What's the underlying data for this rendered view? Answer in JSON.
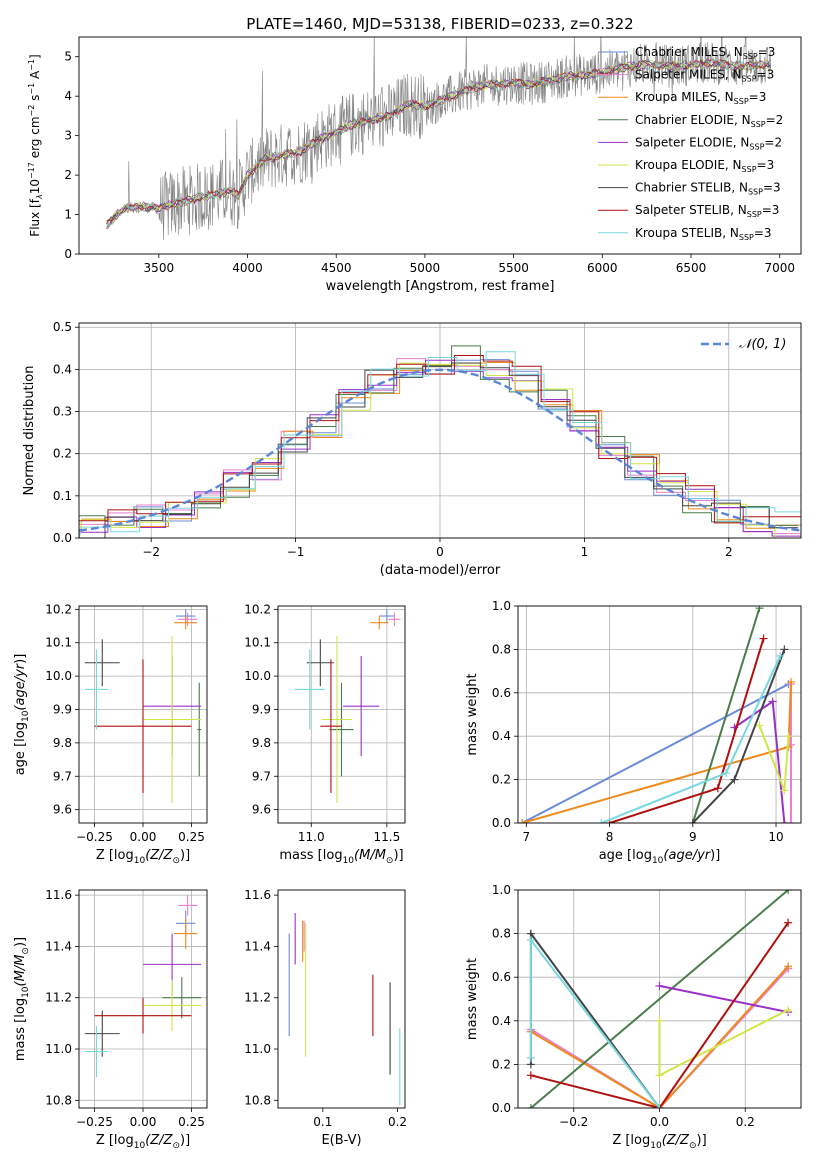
{
  "figure": {
    "title": "PLATE=1460, MJD=53138, FIBERID=0233, z=0.322"
  },
  "colors": {
    "chabrier_miles": "#6a8cd8",
    "salpeter_miles": "#e87fd0",
    "kroupa_miles": "#f08a1a",
    "chabrier_elodie": "#4a7d4a",
    "salpeter_elodie": "#9b30c8",
    "kroupa_elodie": "#d2e64a",
    "chabrier_stelib": "#444444",
    "salpeter_stelib": "#b01010",
    "kroupa_stelib": "#78d8e0",
    "data_spectrum": "#808080",
    "normal_curve": "#5b86d6",
    "grid": "#b0b0b0"
  },
  "chart_data": [
    {
      "id": "spectrum",
      "type": "line",
      "xlabel": "wavelength [Angstrom, rest frame]",
      "ylabel": "Flux [f_λ 10^-17 erg cm^-2 s^-1 A^-1]",
      "xlim": [
        3050,
        7120
      ],
      "ylim": [
        0,
        5.5
      ],
      "xticks": [
        3500,
        4000,
        4500,
        5000,
        5500,
        6000,
        6500,
        7000
      ],
      "yticks": [
        0,
        1,
        2,
        3,
        4,
        5
      ],
      "grid": false,
      "legend_position": "upper right",
      "continuum_x": [
        3200,
        3300,
        3400,
        3500,
        3600,
        3700,
        3800,
        3900,
        3950,
        4000,
        4100,
        4200,
        4300,
        4400,
        4500,
        4600,
        4700,
        4800,
        4900,
        5000,
        5100,
        5200,
        5300,
        5400,
        5500,
        5600,
        5700,
        5800,
        5900,
        6000,
        6100,
        6200,
        6300,
        6400,
        6500,
        6600,
        6700,
        6800,
        6900
      ],
      "continuum_y": [
        0.7,
        1.15,
        1.2,
        1.15,
        1.3,
        1.4,
        1.5,
        1.6,
        1.5,
        2.0,
        2.4,
        2.5,
        2.6,
        2.9,
        3.1,
        3.3,
        3.4,
        3.5,
        3.8,
        3.75,
        3.9,
        4.1,
        4.25,
        4.3,
        4.35,
        4.3,
        4.4,
        4.5,
        4.55,
        4.6,
        4.7,
        4.8,
        4.8,
        4.75,
        4.8,
        4.85,
        4.8,
        4.75,
        4.8
      ],
      "series": [
        {
          "name": "Chabrier MILES, N_SSP=3",
          "label_main": "Chabrier MILES, N",
          "label_sub": "SSP",
          "label_tail": "=3",
          "color_key": "chabrier_miles"
        },
        {
          "name": "Salpeter MILES, N_SSP=3",
          "label_main": "Salpeter MILES, N",
          "label_sub": "SSP",
          "label_tail": "=3",
          "color_key": "salpeter_miles"
        },
        {
          "name": "Kroupa MILES, N_SSP=3",
          "label_main": "Kroupa MILES, N",
          "label_sub": "SSP",
          "label_tail": "=3",
          "color_key": "kroupa_miles"
        },
        {
          "name": "Chabrier ELODIE, N_SSP=2",
          "label_main": "Chabrier ELODIE, N",
          "label_sub": "SSP",
          "label_tail": "=2",
          "color_key": "chabrier_elodie"
        },
        {
          "name": "Salpeter ELODIE, N_SSP=2",
          "label_main": "Salpeter ELODIE, N",
          "label_sub": "SSP",
          "label_tail": "=2",
          "color_key": "salpeter_elodie"
        },
        {
          "name": "Kroupa ELODIE, N_SSP=3",
          "label_main": "Kroupa ELODIE, N",
          "label_sub": "SSP",
          "label_tail": "=3",
          "color_key": "kroupa_elodie"
        },
        {
          "name": "Chabrier STELIB, N_SSP=3",
          "label_main": "Chabrier STELIB, N",
          "label_sub": "SSP",
          "label_tail": "=3",
          "color_key": "chabrier_stelib"
        },
        {
          "name": "Salpeter STELIB, N_SSP=3",
          "label_main": "Salpeter STELIB, N",
          "label_sub": "SSP",
          "label_tail": "=3",
          "color_key": "salpeter_stelib"
        },
        {
          "name": "Kroupa STELIB, N_SSP=3",
          "label_main": "Kroupa STELIB, N",
          "label_sub": "SSP",
          "label_tail": "=3",
          "color_key": "kroupa_stelib"
        }
      ]
    },
    {
      "id": "residuals",
      "type": "histogram",
      "xlabel": "(data-model)/error",
      "ylabel": "Normed distribution",
      "xlim": [
        -2.5,
        2.5
      ],
      "ylim": [
        0,
        0.51
      ],
      "xticks": [
        -2,
        -1,
        0,
        1,
        2
      ],
      "yticks": [
        0.0,
        0.1,
        0.2,
        0.3,
        0.4,
        0.5
      ],
      "grid": true,
      "legend_position": "upper right",
      "legend_label": "𝒩(0, 1)",
      "bin_edges": [
        -2.5,
        -2.3,
        -2.1,
        -1.9,
        -1.7,
        -1.5,
        -1.3,
        -1.1,
        -0.9,
        -0.7,
        -0.5,
        -0.3,
        -0.1,
        0.1,
        0.3,
        0.5,
        0.7,
        0.9,
        1.1,
        1.3,
        1.5,
        1.7,
        1.9,
        2.1,
        2.3,
        2.5
      ],
      "base_density": [
        0.03,
        0.04,
        0.05,
        0.07,
        0.1,
        0.13,
        0.17,
        0.22,
        0.27,
        0.32,
        0.37,
        0.41,
        0.42,
        0.43,
        0.41,
        0.38,
        0.33,
        0.28,
        0.22,
        0.17,
        0.12,
        0.09,
        0.06,
        0.04,
        0.03
      ],
      "normal_curve": {
        "mean": 0,
        "sigma": 1
      }
    },
    {
      "id": "age_vs_Z",
      "type": "errorbar",
      "xlabel": "Z [log10(Z/Z☉)]",
      "ylabel": "age [log10(age/yr)]",
      "xlim": [
        -0.33,
        0.33
      ],
      "ylim": [
        9.56,
        10.21
      ],
      "xticks": [
        -0.25,
        0.0,
        0.25
      ],
      "yticks": [
        9.6,
        9.7,
        9.8,
        9.9,
        10.0,
        10.1,
        10.2
      ],
      "grid": true,
      "points": [
        {
          "color_key": "chabrier_miles",
          "x": 0.22,
          "xerr": 0.05,
          "y": 10.18,
          "yerr": 0.02
        },
        {
          "color_key": "salpeter_miles",
          "x": 0.23,
          "xerr": 0.05,
          "y": 10.17,
          "yerr": 0.02
        },
        {
          "color_key": "kroupa_miles",
          "x": 0.22,
          "xerr": 0.06,
          "y": 10.16,
          "yerr": 0.02
        },
        {
          "color_key": "chabrier_elodie",
          "x": 0.29,
          "xerr": 0.01,
          "y": 9.84,
          "yerr": 0.14
        },
        {
          "color_key": "salpeter_elodie",
          "x": 0.15,
          "xerr": 0.15,
          "y": 9.91,
          "yerr": 0.15
        },
        {
          "color_key": "kroupa_elodie",
          "x": 0.15,
          "xerr": 0.15,
          "y": 9.87,
          "yerr": 0.25
        },
        {
          "color_key": "chabrier_stelib",
          "x": -0.21,
          "xerr": 0.09,
          "y": 10.04,
          "yerr": 0.07
        },
        {
          "color_key": "salpeter_stelib",
          "x": 0.0,
          "xerr": 0.25,
          "y": 9.85,
          "yerr": 0.2
        },
        {
          "color_key": "kroupa_stelib",
          "x": -0.24,
          "xerr": 0.06,
          "y": 9.96,
          "yerr": 0.12
        }
      ]
    },
    {
      "id": "age_vs_mass",
      "type": "errorbar",
      "xlabel": "mass [log10(M/M☉)]",
      "ylabel": "",
      "xlim": [
        10.78,
        11.62
      ],
      "ylim": [
        9.56,
        10.21
      ],
      "xticks": [
        11.0,
        11.5
      ],
      "yticks": [
        9.6,
        9.7,
        9.8,
        9.9,
        10.0,
        10.1,
        10.2
      ],
      "grid": true,
      "points": [
        {
          "color_key": "chabrier_miles",
          "x": 11.5,
          "xerr": 0.05,
          "y": 10.18,
          "yerr": 0.02
        },
        {
          "color_key": "salpeter_miles",
          "x": 11.55,
          "xerr": 0.04,
          "y": 10.17,
          "yerr": 0.02
        },
        {
          "color_key": "kroupa_miles",
          "x": 11.45,
          "xerr": 0.06,
          "y": 10.16,
          "yerr": 0.02
        },
        {
          "color_key": "chabrier_elodie",
          "x": 11.2,
          "xerr": 0.08,
          "y": 9.84,
          "yerr": 0.14
        },
        {
          "color_key": "salpeter_elodie",
          "x": 11.33,
          "xerr": 0.12,
          "y": 9.91,
          "yerr": 0.15
        },
        {
          "color_key": "kroupa_elodie",
          "x": 11.17,
          "xerr": 0.1,
          "y": 9.87,
          "yerr": 0.25
        },
        {
          "color_key": "chabrier_stelib",
          "x": 11.06,
          "xerr": 0.09,
          "y": 10.04,
          "yerr": 0.07
        },
        {
          "color_key": "salpeter_stelib",
          "x": 11.13,
          "xerr": 0.07,
          "y": 9.85,
          "yerr": 0.2
        },
        {
          "color_key": "kroupa_stelib",
          "x": 10.99,
          "xerr": 0.1,
          "y": 9.96,
          "yerr": 0.12
        }
      ]
    },
    {
      "id": "weight_vs_age",
      "type": "line",
      "xlabel": "age [log10(age/yr)]",
      "ylabel": "mass weight",
      "xlim": [
        6.9,
        10.3
      ],
      "ylim": [
        0,
        1.0
      ],
      "xticks": [
        7,
        8,
        9,
        10
      ],
      "yticks": [
        0.0,
        0.2,
        0.4,
        0.6,
        0.8,
        1.0
      ],
      "grid": true,
      "series": [
        {
          "color_key": "chabrier_miles",
          "x": [
            6.95,
            10.15
          ],
          "y": [
            0.0,
            0.64
          ]
        },
        {
          "color_key": "salpeter_miles",
          "x": [
            10.18,
            10.18,
            10.18
          ],
          "y": [
            0.36,
            0.64,
            0.0
          ]
        },
        {
          "color_key": "kroupa_miles",
          "x": [
            6.95,
            10.15,
            10.18
          ],
          "y": [
            0.0,
            0.35,
            0.65
          ]
        },
        {
          "color_key": "chabrier_elodie",
          "x": [
            9.0,
            9.8
          ],
          "y": [
            0.0,
            0.99
          ]
        },
        {
          "color_key": "salpeter_elodie",
          "x": [
            9.5,
            9.96,
            10.1
          ],
          "y": [
            0.44,
            0.56,
            0.0
          ]
        },
        {
          "color_key": "kroupa_elodie",
          "x": [
            9.8,
            10.1,
            10.15
          ],
          "y": [
            0.45,
            0.15,
            0.4
          ]
        },
        {
          "color_key": "chabrier_stelib",
          "x": [
            9.0,
            9.5,
            10.1
          ],
          "y": [
            0.0,
            0.2,
            0.8
          ]
        },
        {
          "color_key": "salpeter_stelib",
          "x": [
            8.0,
            9.3,
            9.85
          ],
          "y": [
            0.0,
            0.16,
            0.85
          ]
        },
        {
          "color_key": "kroupa_stelib",
          "x": [
            7.9,
            9.4,
            10.05
          ],
          "y": [
            0.0,
            0.23,
            0.77
          ]
        }
      ]
    },
    {
      "id": "mass_vs_Z",
      "type": "errorbar",
      "xlabel": "Z [log10(Z/Z☉)]",
      "ylabel": "mass [log10(M/M☉)]",
      "xlim": [
        -0.33,
        0.33
      ],
      "ylim": [
        10.77,
        11.62
      ],
      "xticks": [
        -0.25,
        0.0,
        0.25
      ],
      "yticks": [
        10.8,
        11.0,
        11.2,
        11.4,
        11.6
      ],
      "grid": true,
      "points": [
        {
          "color_key": "chabrier_miles",
          "x": 0.22,
          "xerr": 0.05,
          "y": 11.49,
          "yerr": 0.05
        },
        {
          "color_key": "salpeter_miles",
          "x": 0.23,
          "xerr": 0.05,
          "y": 11.56,
          "yerr": 0.04
        },
        {
          "color_key": "kroupa_miles",
          "x": 0.22,
          "xerr": 0.06,
          "y": 11.45,
          "yerr": 0.06
        },
        {
          "color_key": "chabrier_elodie",
          "x": 0.2,
          "xerr": 0.1,
          "y": 11.2,
          "yerr": 0.08
        },
        {
          "color_key": "salpeter_elodie",
          "x": 0.15,
          "xerr": 0.15,
          "y": 11.33,
          "yerr": 0.12
        },
        {
          "color_key": "kroupa_elodie",
          "x": 0.15,
          "xerr": 0.15,
          "y": 11.17,
          "yerr": 0.1
        },
        {
          "color_key": "chabrier_stelib",
          "x": -0.21,
          "xerr": 0.09,
          "y": 11.06,
          "yerr": 0.09
        },
        {
          "color_key": "salpeter_stelib",
          "x": 0.0,
          "xerr": 0.25,
          "y": 11.13,
          "yerr": 0.07
        },
        {
          "color_key": "kroupa_stelib",
          "x": -0.24,
          "xerr": 0.06,
          "y": 10.99,
          "yerr": 0.1
        }
      ]
    },
    {
      "id": "mass_vs_ebv",
      "type": "errorbar",
      "xlabel": "E(B-V)",
      "ylabel": "",
      "xlim": [
        0.04,
        0.21
      ],
      "ylim": [
        10.77,
        11.62
      ],
      "xticks": [
        0.1,
        0.2
      ],
      "yticks": [
        10.8,
        11.0,
        11.2,
        11.4,
        11.6
      ],
      "grid": false,
      "points": [
        {
          "color_key": "chabrier_miles",
          "x": 0.055,
          "xerr": 0.0,
          "y": 11.25,
          "yerr": 0.2
        },
        {
          "color_key": "salpeter_miles",
          "x": 0.075,
          "xerr": 0.0,
          "y": 11.44,
          "yerr": 0.06
        },
        {
          "color_key": "kroupa_miles",
          "x": 0.073,
          "xerr": 0.0,
          "y": 11.42,
          "yerr": 0.08
        },
        {
          "color_key": "salpeter_elodie",
          "x": 0.063,
          "xerr": 0.0,
          "y": 11.43,
          "yerr": 0.1
        },
        {
          "color_key": "kroupa_elodie",
          "x": 0.077,
          "xerr": 0.0,
          "y": 11.23,
          "yerr": 0.26
        },
        {
          "color_key": "chabrier_stelib",
          "x": 0.19,
          "xerr": 0.0,
          "y": 11.08,
          "yerr": 0.18
        },
        {
          "color_key": "salpeter_stelib",
          "x": 0.167,
          "xerr": 0.0,
          "y": 11.17,
          "yerr": 0.12
        },
        {
          "color_key": "kroupa_stelib",
          "x": 0.203,
          "xerr": 0.0,
          "y": 10.93,
          "yerr": 0.15
        }
      ]
    },
    {
      "id": "weight_vs_Z",
      "type": "line",
      "xlabel": "Z [log10(Z/Z☉)]",
      "ylabel": "mass weight",
      "xlim": [
        -0.33,
        0.33
      ],
      "ylim": [
        0,
        1.0
      ],
      "xticks": [
        -0.2,
        0.0,
        0.2
      ],
      "yticks": [
        0.0,
        0.2,
        0.4,
        0.6,
        0.8,
        1.0
      ],
      "grid": true,
      "series": [
        {
          "color_key": "chabrier_miles",
          "x": [
            -0.3,
            0.0,
            0.3
          ],
          "y": [
            0.36,
            0.0,
            0.64
          ]
        },
        {
          "color_key": "salpeter_miles",
          "x": [
            -0.3,
            0.0,
            0.3
          ],
          "y": [
            0.36,
            0.0,
            0.64
          ]
        },
        {
          "color_key": "kroupa_miles",
          "x": [
            -0.3,
            0.0,
            0.3
          ],
          "y": [
            0.35,
            0.0,
            0.65
          ]
        },
        {
          "color_key": "chabrier_elodie",
          "x": [
            -0.3,
            0.3
          ],
          "y": [
            0.0,
            1.0
          ]
        },
        {
          "color_key": "salpeter_elodie",
          "x": [
            0.0,
            0.3
          ],
          "y": [
            0.56,
            0.44
          ]
        },
        {
          "color_key": "kroupa_elodie",
          "x": [
            0.0,
            0.0,
            0.3
          ],
          "y": [
            0.4,
            0.15,
            0.45
          ]
        },
        {
          "color_key": "chabrier_stelib",
          "x": [
            -0.3,
            -0.3,
            0.0
          ],
          "y": [
            0.2,
            0.8,
            0.0
          ]
        },
        {
          "color_key": "salpeter_stelib",
          "x": [
            -0.3,
            0.0,
            0.3
          ],
          "y": [
            0.15,
            0.0,
            0.85
          ]
        },
        {
          "color_key": "kroupa_stelib",
          "x": [
            -0.3,
            -0.3,
            0.0
          ],
          "y": [
            0.23,
            0.77,
            0.0
          ]
        }
      ]
    }
  ]
}
